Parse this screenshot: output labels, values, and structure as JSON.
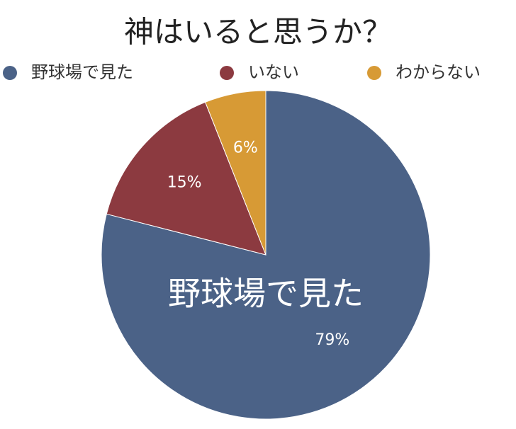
{
  "chart_data": {
    "type": "pie",
    "title": "神はいると思うか？",
    "categories": [
      "野球場で見た",
      "いない",
      "わからない"
    ],
    "values": [
      79,
      15,
      6
    ],
    "value_labels": [
      "79%",
      "15%",
      "6%"
    ],
    "colors": [
      "#4b6287",
      "#8c3a40",
      "#d79a35"
    ],
    "legend": "top"
  }
}
